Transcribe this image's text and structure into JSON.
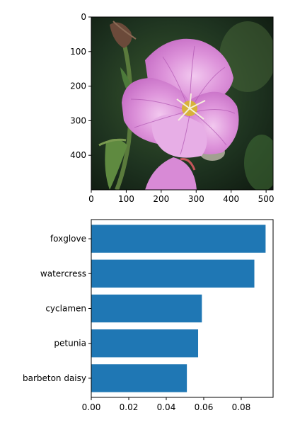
{
  "chart_data": [
    {
      "type": "image",
      "image_description_icon": "pink-evening-primrose-photo",
      "xlim": [
        0,
        520
      ],
      "ylim": [
        500,
        0
      ],
      "x_ticks": [
        0,
        100,
        200,
        300,
        400,
        500
      ],
      "y_ticks": [
        0,
        100,
        200,
        300,
        400
      ],
      "colors": {
        "petal": "#d98ad6",
        "petal_light": "#eab8ea",
        "vein": "#b45cb5",
        "center": "#d8b23a",
        "background_dark": "#17261a",
        "leaf": "#4d7a3a"
      }
    },
    {
      "type": "bar",
      "orientation": "horizontal",
      "categories": [
        "foxglove",
        "watercress",
        "cyclamen",
        "petunia",
        "barbeton daisy"
      ],
      "values": [
        0.093,
        0.087,
        0.059,
        0.057,
        0.051
      ],
      "xlim": [
        0,
        0.097
      ],
      "x_ticks": [
        0.0,
        0.02,
        0.04,
        0.06,
        0.08
      ],
      "x_tick_labels": [
        "0.00",
        "0.02",
        "0.04",
        "0.06",
        "0.08"
      ],
      "bar_color": "#1f77b4",
      "grid": false
    }
  ]
}
